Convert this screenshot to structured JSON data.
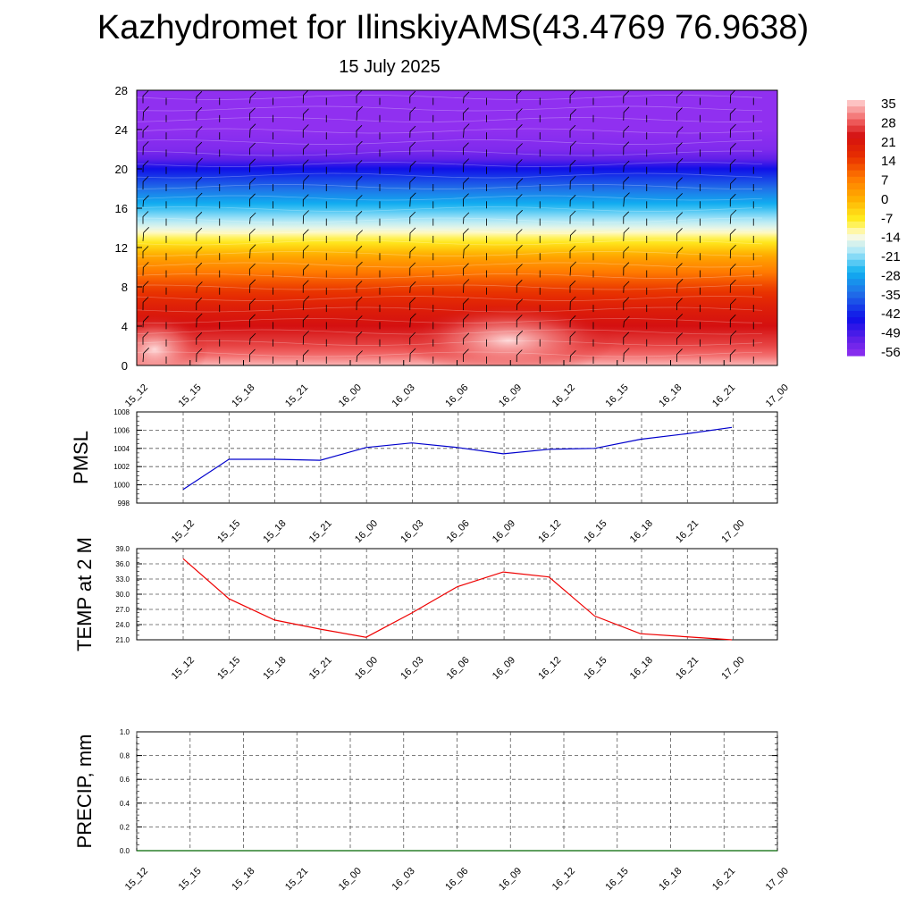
{
  "title": "Kazhydromet for IlinskiyAMS(43.4769 76.9638)",
  "subtitle": "15 July 2025",
  "chart_data": [
    {
      "type": "heatmap",
      "name": "temperature-wind-profile",
      "xlabel": "",
      "ylabel": "",
      "x_ticks": [
        "15_12",
        "15_15",
        "15_18",
        "15_21",
        "16_00",
        "16_03",
        "16_06",
        "16_09",
        "16_12",
        "16_15",
        "16_18",
        "16_21",
        "17_00"
      ],
      "y_ticks": [
        0,
        4,
        8,
        12,
        16,
        20,
        24,
        28
      ],
      "ylim": [
        0,
        28
      ],
      "colorbar": {
        "labels": [
          35,
          28,
          21,
          14,
          7,
          0,
          -7,
          -14,
          -21,
          -28,
          -35,
          -42,
          -49,
          -56
        ],
        "range": [
          -60,
          38
        ]
      },
      "color_stops": [
        {
          "v": 38,
          "c": "#ffd4d4"
        },
        {
          "v": 30,
          "c": "#f06060"
        },
        {
          "v": 24,
          "c": "#d41010"
        },
        {
          "v": 16,
          "c": "#e83000"
        },
        {
          "v": 8,
          "c": "#ff7a00"
        },
        {
          "v": 0,
          "c": "#ffb000"
        },
        {
          "v": -8,
          "c": "#ffee20"
        },
        {
          "v": -14,
          "c": "#fffbe0"
        },
        {
          "v": -20,
          "c": "#aee8f8"
        },
        {
          "v": -28,
          "c": "#10b0f0"
        },
        {
          "v": -36,
          "c": "#2070e8"
        },
        {
          "v": -46,
          "c": "#1010e8"
        },
        {
          "v": -54,
          "c": "#6020e8"
        },
        {
          "v": -60,
          "c": "#9030f0"
        }
      ],
      "profile_levels": [
        0,
        1,
        2,
        3,
        4,
        5,
        6,
        7,
        8,
        9,
        10,
        11,
        12,
        13,
        14,
        16,
        18,
        20,
        21,
        22,
        24,
        28
      ],
      "profile_temps": [
        36,
        31,
        28,
        26,
        24,
        22,
        20,
        17,
        14,
        10,
        6,
        2,
        -4,
        -10,
        -16,
        -26,
        -36,
        -46,
        -54,
        -58,
        -60,
        -60
      ]
    },
    {
      "type": "line",
      "name": "pmsl",
      "ylabel": "PMSL",
      "x": [
        "15_12",
        "15_15",
        "15_18",
        "15_21",
        "16_00",
        "16_03",
        "16_06",
        "16_09",
        "16_12",
        "16_15",
        "16_18",
        "16_21",
        "17_00"
      ],
      "y": [
        999.5,
        1002.8,
        1002.8,
        1002.7,
        1004.1,
        1004.6,
        1004.1,
        1003.4,
        1003.9,
        1004.0,
        1005.0,
        1005.6,
        1006.3
      ],
      "ylim": [
        998,
        1008
      ],
      "y_ticks": [
        "998",
        "1000",
        "1002",
        "1004",
        "1006",
        "1008"
      ],
      "color": "#0000cc",
      "grid": true
    },
    {
      "type": "line",
      "name": "temp-2m",
      "ylabel": "TEMP at 2 M",
      "x": [
        "15_12",
        "15_15",
        "15_18",
        "15_21",
        "16_00",
        "16_03",
        "16_06",
        "16_09",
        "16_12",
        "16_15",
        "16_18",
        "16_21",
        "17_00"
      ],
      "y": [
        37.0,
        29.1,
        24.9,
        23.1,
        21.5,
        26.3,
        31.5,
        34.4,
        33.4,
        25.7,
        22.2,
        21.6,
        21.0
      ],
      "ylim": [
        21.0,
        39.0
      ],
      "y_ticks": [
        "21.0",
        "24.0",
        "27.0",
        "30.0",
        "33.0",
        "36.0",
        "39.0"
      ],
      "color": "#ee0000",
      "grid": true
    },
    {
      "type": "line",
      "name": "precip",
      "ylabel": "PRECIP, mm",
      "x": [
        "15_12",
        "15_15",
        "15_18",
        "15_21",
        "16_00",
        "16_03",
        "16_06",
        "16_09",
        "16_12",
        "16_15",
        "16_18",
        "16_21",
        "17_00"
      ],
      "y": [
        0,
        0,
        0,
        0,
        0,
        0,
        0,
        0,
        0,
        0,
        0,
        0,
        0
      ],
      "ylim": [
        0,
        1.0
      ],
      "y_ticks": [
        "0.0",
        "0.2",
        "0.4",
        "0.6",
        "0.8",
        "1.0"
      ],
      "color": "#006600",
      "grid": true
    }
  ]
}
